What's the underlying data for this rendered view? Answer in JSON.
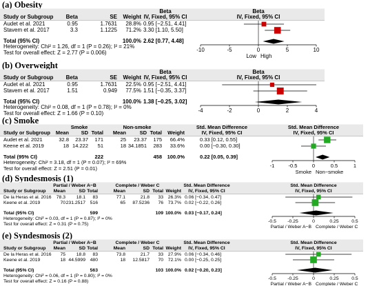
{
  "chart_data": [
    {
      "type": "forest",
      "title": "(a) Obesity",
      "color": "#cc0000",
      "effect_header": [
        "Beta",
        "IV, Fixed, 95% CI"
      ],
      "columns": [
        "Study or Subgroup",
        "Beta",
        "SE",
        "Weight"
      ],
      "rows": [
        {
          "study": "Audet et al. 2021",
          "cells": [
            "0.95",
            "1.7631"
          ],
          "weight": 28.8,
          "weight_label": "28.8%",
          "value": 0.95,
          "ci": [
            -2.51,
            4.41
          ],
          "value_label": "0.95 [−2.51, 4.41]"
        },
        {
          "study": "Stavem et al. 2017",
          "cells": [
            "3.3",
            "1.1225"
          ],
          "weight": 71.2,
          "weight_label": "71.2%",
          "value": 3.3,
          "ci": [
            1.1,
            5.5
          ],
          "value_label": "3.30 [1.10, 5.50]"
        }
      ],
      "totals": {
        "label": "Total (95% CI)",
        "weight_label": "100.0%",
        "value": 2.62,
        "ci": [
          0.77,
          4.48
        ],
        "value_label": "2.62 [0.77, 4.48]"
      },
      "heterogeneity": "Heterogeneity: Chi² = 1.26, df = 1 (P = 0.26); I² = 21%",
      "overall_effect": "Test for overall effect: Z = 2.77 (P = 0.006)",
      "xlim": [
        -10,
        10
      ],
      "xticks": [
        -10,
        -5,
        0,
        5,
        10
      ],
      "axis_labels": [
        "Low",
        "High"
      ]
    },
    {
      "type": "forest",
      "title": "(b) Overweight",
      "color": "#cc0000",
      "effect_header": [
        "Beta",
        "IV, Fixed, 95% CI"
      ],
      "columns": [
        "Study or Subgroup",
        "Beta",
        "SE",
        "Weight"
      ],
      "rows": [
        {
          "study": "Audet et al. 2021",
          "cells": [
            "0.95",
            "1.7631"
          ],
          "weight": 22.5,
          "weight_label": "22.5%",
          "value": 0.95,
          "ci": [
            -2.51,
            4.41
          ],
          "value_label": "0.95 [−2.51, 4.41]"
        },
        {
          "study": "Stavem et al. 2017",
          "cells": [
            "1.51",
            "0.949"
          ],
          "weight": 77.5,
          "weight_label": "77.5%",
          "value": 1.51,
          "ci": [
            -0.35,
            3.37
          ],
          "value_label": "1.51 [−0.35, 3.37]"
        }
      ],
      "totals": {
        "label": "Total (95% CI)",
        "weight_label": "100.0%",
        "value": 1.38,
        "ci": [
          -0.25,
          3.02
        ],
        "value_label": "1.38 [−0.25, 3.02]"
      },
      "heterogeneity": "Heterogeneity: Chi² = 0.08, df = 1 (P = 0.78); I² = 0%",
      "overall_effect": "Test for overall effect: Z = 1.66 (P = 0.10)",
      "xlim": [
        -4,
        4
      ],
      "xticks": [
        -4,
        -2,
        0,
        2,
        4
      ]
    },
    {
      "type": "forest",
      "title": "(c) Smoke",
      "color": "#22aa22",
      "effect_header": [
        "Std. Mean Difference",
        "IV, Fixed, 95% CI"
      ],
      "groups": [
        "Smoke",
        "Non-smoke"
      ],
      "columns": [
        "Study or Subgroup",
        "Mean",
        "SD",
        "Total",
        "Mean",
        "SD",
        "Total",
        "Weight"
      ],
      "rows": [
        {
          "study": "Audet et al. 2021",
          "cells": [
            "32.8",
            "23.37",
            "171",
            "25",
            "23.37",
            "175"
          ],
          "weight": 66.4,
          "weight_label": "66.4%",
          "value": 0.33,
          "ci": [
            0.12,
            0.55
          ],
          "value_label": "0.33 [0.12, 0.55]"
        },
        {
          "study": "Keene et al. 2019",
          "cells": [
            "18",
            "14.222",
            "51",
            "18",
            "34.1851",
            "283"
          ],
          "weight": 33.6,
          "weight_label": "33.6%",
          "value": 0.0,
          "ci": [
            -0.3,
            0.3
          ],
          "value_label": "0.00 [−0.30, 0.30]"
        }
      ],
      "totals": {
        "label": "Total (95% CI)",
        "n": [
          "222",
          "458"
        ],
        "weight_label": "100.0%",
        "value": 0.22,
        "ci": [
          0.05,
          0.39
        ],
        "value_label": "0.22 [0.05, 0.39]"
      },
      "heterogeneity": "Heterogeneity: Chi² = 3.18, df = 1 (P = 0.07); I² = 69%",
      "overall_effect": "Test for overall effect: Z = 2.51 (P = 0.01)",
      "xlim": [
        -1,
        1
      ],
      "xticks": [
        -1,
        -0.5,
        0,
        0.5,
        1
      ],
      "axis_labels": [
        "Smoke",
        "Non−smoke"
      ]
    },
    {
      "type": "forest",
      "title": "(d) Syndesmosis (1)",
      "color": "#22aa22",
      "effect_header": [
        "Std. Mean Difference",
        "IV, Fixed, 95% CI"
      ],
      "groups": [
        "Partial / Weber A−B",
        "Complete / Weber C"
      ],
      "columns": [
        "Study or Subgroup",
        "Mean",
        "SD",
        "Total",
        "Mean",
        "SD",
        "Total",
        "Weight"
      ],
      "rows": [
        {
          "study": "De la Heras et al. 2016",
          "cells": [
            "78.3",
            "18.1",
            "83",
            "77.1",
            "21.8",
            "33"
          ],
          "weight": 26.3,
          "weight_label": "26.3%",
          "value": 0.06,
          "ci": [
            -0.34,
            0.47
          ],
          "value_label": "0.06 [−0.34, 0.47]"
        },
        {
          "study": "Keene et al. 2019",
          "cells": [
            "70",
            "231.2517",
            "516",
            "65",
            "87.5236",
            "76"
          ],
          "weight": 73.7,
          "weight_label": "73.7%",
          "value": 0.02,
          "ci": [
            -0.22,
            0.26
          ],
          "value_label": "0.02 [−0.22, 0.26]"
        }
      ],
      "totals": {
        "label": "Total (95% CI)",
        "n": [
          "599",
          "109"
        ],
        "weight_label": "100.0%",
        "value": 0.03,
        "ci": [
          -0.17,
          0.24
        ],
        "value_label": "0.03 [−0.17, 0.24]"
      },
      "heterogeneity": "Heterogeneity: Chi² = 0.03, df = 1 (P = 0.87); I² = 0%",
      "overall_effect": "Test for overall effect: Z = 0.31 (P = 0.75)",
      "xlim": [
        -0.5,
        0.5
      ],
      "xticks": [
        -0.5,
        -0.25,
        0,
        0.25,
        0.5
      ],
      "axis_labels": [
        "Partial / Weber A−B",
        "Complete / Weber C"
      ]
    },
    {
      "type": "forest",
      "title": "(e) Syndesmosis (2)",
      "color": "#22aa22",
      "effect_header": [
        "Std. Mean Difference",
        "IV, Fixed, 95% CI"
      ],
      "groups": [
        "Partial / Weber A−B",
        "Complete / Weber C"
      ],
      "columns": [
        "Study or Subgroup",
        "Mean",
        "SD",
        "Total",
        "Mean",
        "SD",
        "Total",
        "Weight"
      ],
      "rows": [
        {
          "study": "De la Heras et al. 2016",
          "cells": [
            "75",
            "18.8",
            "83",
            "73.8",
            "21.7",
            "33"
          ],
          "weight": 27.9,
          "weight_label": "27.9%",
          "value": 0.06,
          "ci": [
            -0.34,
            0.46
          ],
          "value_label": "0.06 [−0.34, 0.46]"
        },
        {
          "study": "Keene et al. 2019",
          "cells": [
            "18",
            "44.5999",
            "480",
            "18",
            "12.5817",
            "70"
          ],
          "weight": 72.1,
          "weight_label": "72.1%",
          "value": 0.0,
          "ci": [
            -0.25,
            0.25
          ],
          "value_label": "0.00 [−0.25, 0.25]"
        }
      ],
      "totals": {
        "label": "Total (95% CI)",
        "n": [
          "563",
          "103"
        ],
        "weight_label": "100.0%",
        "value": 0.02,
        "ci": [
          -0.2,
          0.23
        ],
        "value_label": "0.02 [−0.20, 0.23]"
      },
      "heterogeneity": "Heterogeneity: Chi² = 0.06, df = 1 (P = 0.80); I² = 0%",
      "overall_effect": "Test for overall effect: Z = 0.16 (P = 0.88)",
      "xlim": [
        -0.5,
        0.5
      ],
      "xticks": [
        -0.5,
        -0.25,
        0,
        0.25,
        0.5
      ],
      "axis_labels": [
        "Partial / Weber A−B",
        "Complete / Weber C"
      ]
    }
  ]
}
